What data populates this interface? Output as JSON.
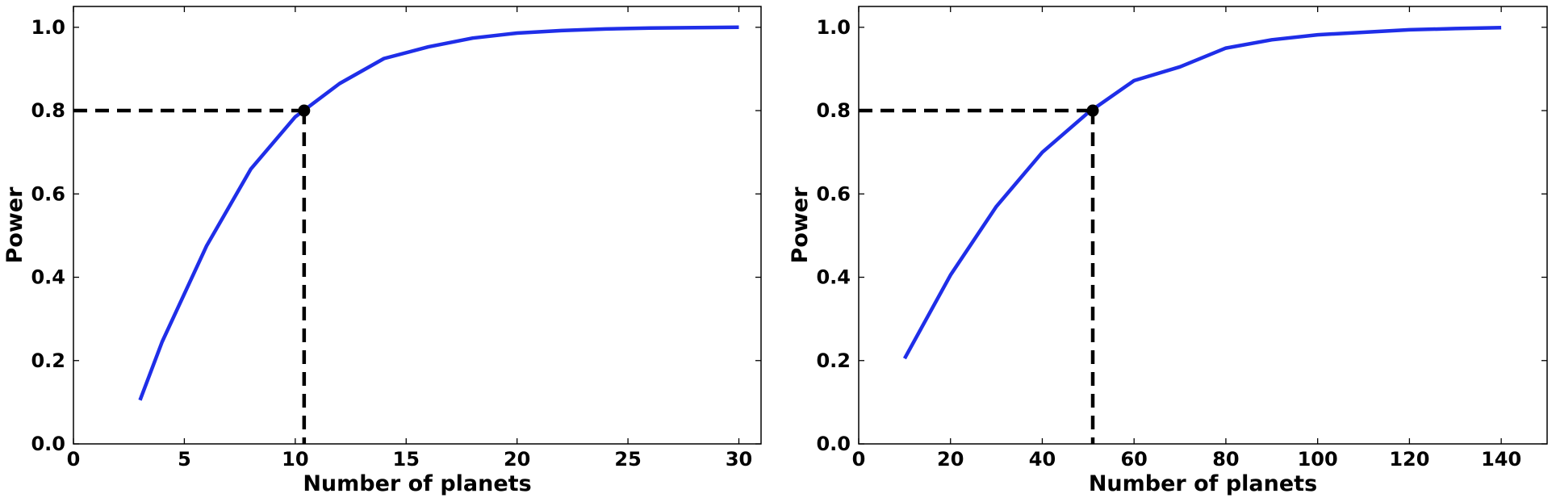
{
  "chart_data": [
    {
      "type": "line",
      "xlabel": "Number of planets",
      "ylabel": "Power",
      "xlim": [
        0,
        31
      ],
      "ylim": [
        0,
        1.05
      ],
      "xticks": [
        0,
        5,
        10,
        15,
        20,
        25,
        30
      ],
      "yticks": [
        0.0,
        0.2,
        0.4,
        0.6,
        0.8,
        1.0
      ],
      "xtick_labels": [
        "0",
        "5",
        "10",
        "15",
        "20",
        "25",
        "30"
      ],
      "ytick_labels": [
        "0.0",
        "0.2",
        "0.4",
        "0.6",
        "0.8",
        "1.0"
      ],
      "grid": false,
      "series": [
        {
          "color": "#1f2ee8",
          "x": [
            3,
            4,
            6,
            8,
            10,
            12,
            14,
            16,
            18,
            20,
            22,
            24,
            26,
            28,
            30
          ],
          "y": [
            0.105,
            0.245,
            0.475,
            0.66,
            0.785,
            0.865,
            0.925,
            0.953,
            0.974,
            0.986,
            0.992,
            0.996,
            0.998,
            0.999,
            1.0
          ]
        }
      ],
      "marker": {
        "x": 10.4,
        "y": 0.8,
        "color": "#000000"
      },
      "reference_lines": {
        "x": 10.4,
        "y": 0.8,
        "style": "dashed",
        "color": "#000000"
      }
    },
    {
      "type": "line",
      "xlabel": "Number of planets",
      "ylabel": "Power",
      "xlim": [
        0,
        150
      ],
      "ylim": [
        0,
        1.05
      ],
      "xticks": [
        0,
        20,
        40,
        60,
        80,
        100,
        120,
        140
      ],
      "yticks": [
        0.0,
        0.2,
        0.4,
        0.6,
        0.8,
        1.0
      ],
      "xtick_labels": [
        "0",
        "20",
        "40",
        "60",
        "80",
        "100",
        "120",
        "140"
      ],
      "ytick_labels": [
        "0.0",
        "0.2",
        "0.4",
        "0.6",
        "0.8",
        "1.0"
      ],
      "grid": false,
      "series": [
        {
          "color": "#1f2ee8",
          "x": [
            10,
            20,
            30,
            40,
            50,
            60,
            70,
            80,
            90,
            100,
            110,
            120,
            130,
            140
          ],
          "y": [
            0.205,
            0.405,
            0.57,
            0.7,
            0.795,
            0.872,
            0.905,
            0.95,
            0.97,
            0.982,
            0.988,
            0.994,
            0.997,
            0.999
          ]
        }
      ],
      "marker": {
        "x": 51,
        "y": 0.8,
        "color": "#000000"
      },
      "reference_lines": {
        "x": 51,
        "y": 0.8,
        "style": "dashed",
        "color": "#000000"
      }
    }
  ]
}
